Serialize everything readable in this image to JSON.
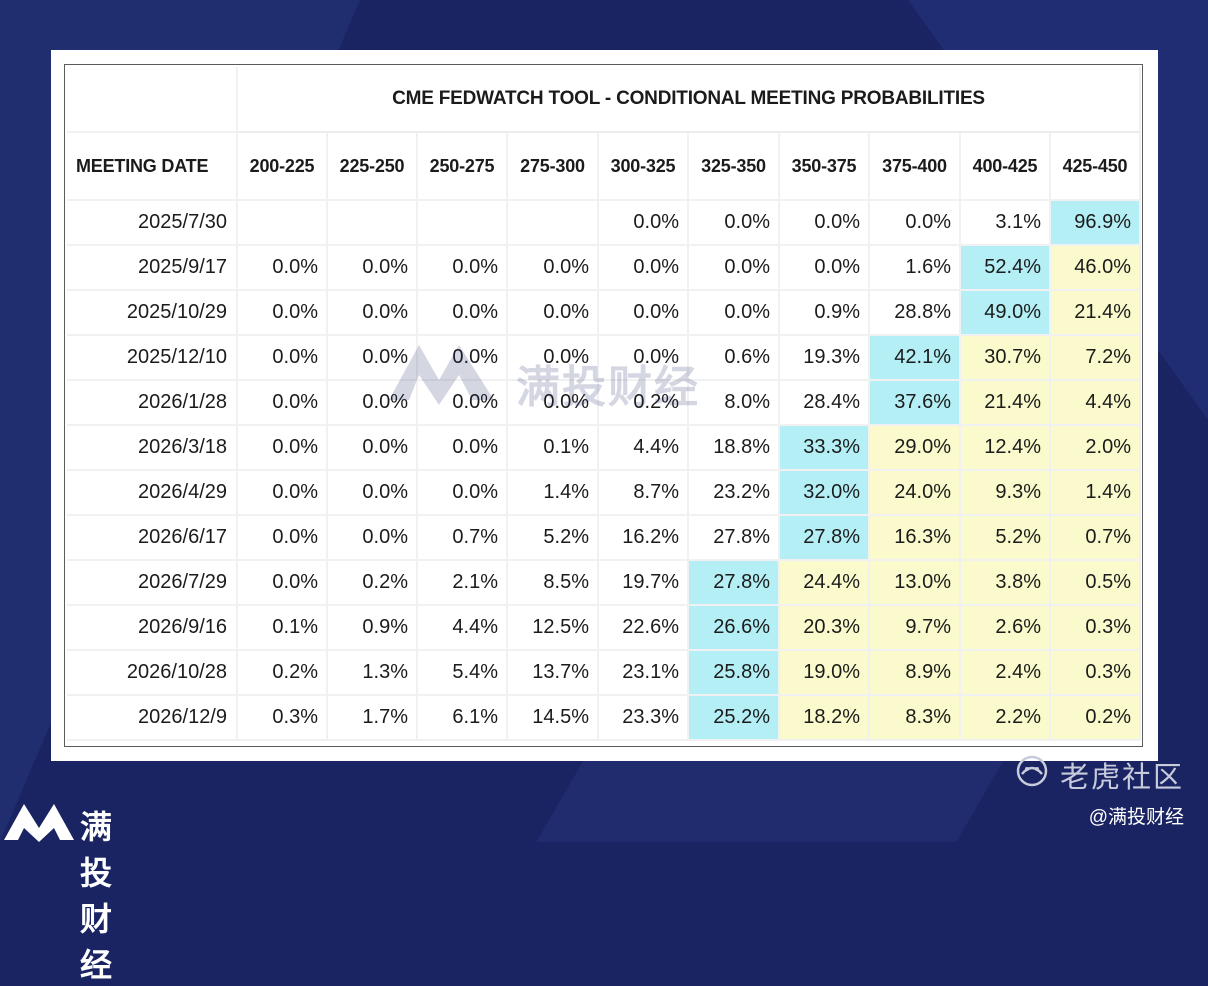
{
  "title": "CME FEDWATCH TOOL - CONDITIONAL MEETING PROBABILITIES",
  "date_header": "MEETING DATE",
  "columns": [
    "200-225",
    "225-250",
    "250-275",
    "275-300",
    "300-325",
    "325-350",
    "350-375",
    "375-400",
    "400-425",
    "425-450"
  ],
  "rows": [
    {
      "date": "2025/7/30",
      "values": [
        "",
        "",
        "",
        "",
        "0.0%",
        "0.0%",
        "0.0%",
        "0.0%",
        "3.1%",
        "96.9%"
      ],
      "cyan": [
        9
      ],
      "yellow": []
    },
    {
      "date": "2025/9/17",
      "values": [
        "0.0%",
        "0.0%",
        "0.0%",
        "0.0%",
        "0.0%",
        "0.0%",
        "0.0%",
        "1.6%",
        "52.4%",
        "46.0%"
      ],
      "cyan": [
        8
      ],
      "yellow": [
        9
      ]
    },
    {
      "date": "2025/10/29",
      "values": [
        "0.0%",
        "0.0%",
        "0.0%",
        "0.0%",
        "0.0%",
        "0.0%",
        "0.9%",
        "28.8%",
        "49.0%",
        "21.4%"
      ],
      "cyan": [
        8
      ],
      "yellow": [
        9
      ]
    },
    {
      "date": "2025/12/10",
      "values": [
        "0.0%",
        "0.0%",
        "0.0%",
        "0.0%",
        "0.0%",
        "0.6%",
        "19.3%",
        "42.1%",
        "30.7%",
        "7.2%"
      ],
      "cyan": [
        7
      ],
      "yellow": [
        8,
        9
      ]
    },
    {
      "date": "2026/1/28",
      "values": [
        "0.0%",
        "0.0%",
        "0.0%",
        "0.0%",
        "0.2%",
        "8.0%",
        "28.4%",
        "37.6%",
        "21.4%",
        "4.4%"
      ],
      "cyan": [
        7
      ],
      "yellow": [
        8,
        9
      ]
    },
    {
      "date": "2026/3/18",
      "values": [
        "0.0%",
        "0.0%",
        "0.0%",
        "0.1%",
        "4.4%",
        "18.8%",
        "33.3%",
        "29.0%",
        "12.4%",
        "2.0%"
      ],
      "cyan": [
        6
      ],
      "yellow": [
        7,
        8,
        9
      ]
    },
    {
      "date": "2026/4/29",
      "values": [
        "0.0%",
        "0.0%",
        "0.0%",
        "1.4%",
        "8.7%",
        "23.2%",
        "32.0%",
        "24.0%",
        "9.3%",
        "1.4%"
      ],
      "cyan": [
        6
      ],
      "yellow": [
        7,
        8,
        9
      ]
    },
    {
      "date": "2026/6/17",
      "values": [
        "0.0%",
        "0.0%",
        "0.7%",
        "5.2%",
        "16.2%",
        "27.8%",
        "27.8%",
        "16.3%",
        "5.2%",
        "0.7%"
      ],
      "cyan": [
        6
      ],
      "yellow": [
        7,
        8,
        9
      ]
    },
    {
      "date": "2026/7/29",
      "values": [
        "0.0%",
        "0.2%",
        "2.1%",
        "8.5%",
        "19.7%",
        "27.8%",
        "24.4%",
        "13.0%",
        "3.8%",
        "0.5%"
      ],
      "cyan": [
        5
      ],
      "yellow": [
        6,
        7,
        8,
        9
      ]
    },
    {
      "date": "2026/9/16",
      "values": [
        "0.1%",
        "0.9%",
        "4.4%",
        "12.5%",
        "22.6%",
        "26.6%",
        "20.3%",
        "9.7%",
        "2.6%",
        "0.3%"
      ],
      "cyan": [
        5
      ],
      "yellow": [
        6,
        7,
        8,
        9
      ]
    },
    {
      "date": "2026/10/28",
      "values": [
        "0.2%",
        "1.3%",
        "5.4%",
        "13.7%",
        "23.1%",
        "25.8%",
        "19.0%",
        "8.9%",
        "2.4%",
        "0.3%"
      ],
      "cyan": [
        5
      ],
      "yellow": [
        6,
        7,
        8,
        9
      ]
    },
    {
      "date": "2026/12/9",
      "values": [
        "0.3%",
        "1.7%",
        "6.1%",
        "14.5%",
        "23.3%",
        "25.2%",
        "18.2%",
        "8.3%",
        "2.2%",
        "0.2%"
      ],
      "cyan": [
        5
      ],
      "yellow": [
        6,
        7,
        8,
        9
      ]
    }
  ],
  "colors": {
    "cyan": "#b3eff5",
    "yellow": "#fafacc",
    "background": "#1a2463"
  },
  "watermark": "满投财经",
  "brand": {
    "logo_text": "满投财经",
    "logo_icon": "m-logo-icon"
  },
  "tiger": {
    "text": "老虎社区",
    "icon": "tiger-logo-icon"
  },
  "handle": "@满投财经"
}
